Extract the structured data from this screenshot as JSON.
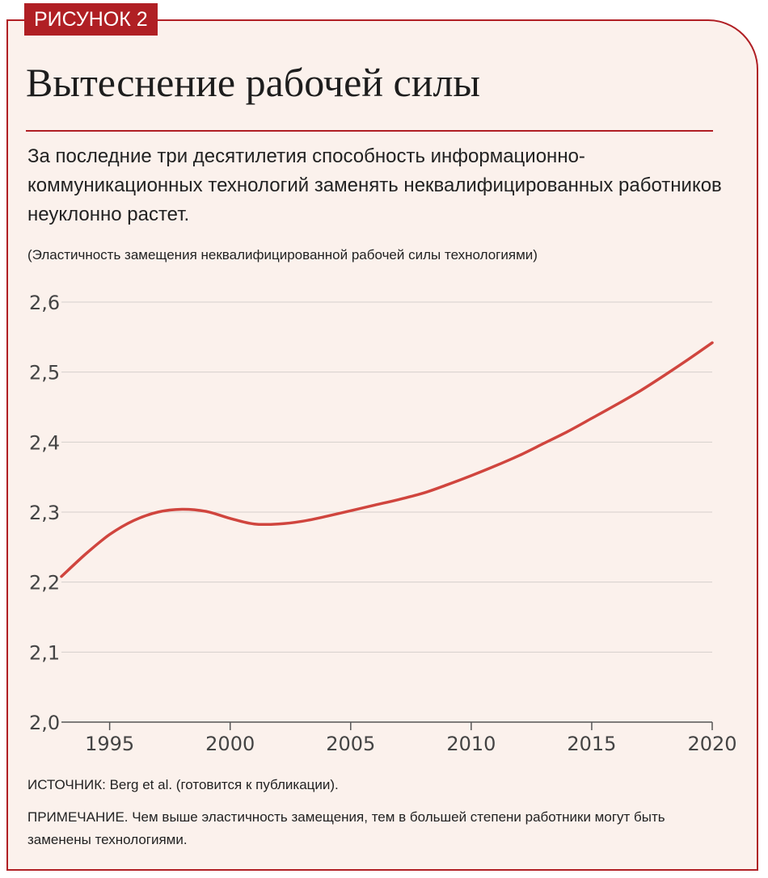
{
  "figure_label": "РИСУНОК 2",
  "title": "Вытеснение рабочей силы",
  "subtitle": "За последние три десятилетия способность информационно-коммуникационных технологий заменять неквалифицированных работников неуклонно растет.",
  "unit_label": "(Эластичность замещения неквалифицированной рабочей силы технологиями)",
  "source": "ИСТОЧНИК: Berg et al. (готовится к публикации).",
  "note": "ПРИМЕЧАНИЕ. Чем выше эластичность замещения, тем в большей степени работники могут быть заменены технологиями.",
  "colors": {
    "accent": "#b01f24",
    "line": "#d0453e",
    "panel": "#fbf1ec",
    "grid": "#d6d0cc"
  },
  "chart_data": {
    "type": "line",
    "title": "",
    "xlabel": "",
    "ylabel": "",
    "xlim": [
      1993,
      2020
    ],
    "ylim": [
      2.0,
      2.6
    ],
    "grid": true,
    "x_ticks": [
      1995,
      2000,
      2005,
      2010,
      2015,
      2020
    ],
    "x_tick_labels": [
      "1995",
      "2000",
      "2005",
      "2010",
      "2015",
      "2020"
    ],
    "y_ticks": [
      2.0,
      2.1,
      2.2,
      2.3,
      2.4,
      2.5,
      2.6
    ],
    "y_tick_labels": [
      "2,0",
      "2,1",
      "2,2",
      "2,3",
      "2,4",
      "2,5",
      "2,6"
    ],
    "series": [
      {
        "x": [
          1993,
          1994,
          1995,
          1996,
          1997,
          1998,
          1999,
          2000,
          2001,
          2002,
          2003,
          2004,
          2005,
          2006,
          2007,
          2008,
          2009,
          2010,
          2011,
          2012,
          2013,
          2014,
          2015,
          2016,
          2017,
          2018,
          2019,
          2020
        ],
        "y": [
          2.208,
          2.24,
          2.268,
          2.288,
          2.3,
          2.304,
          2.301,
          2.291,
          2.283,
          2.283,
          2.287,
          2.294,
          2.302,
          2.31,
          2.318,
          2.327,
          2.339,
          2.352,
          2.366,
          2.381,
          2.398,
          2.415,
          2.434,
          2.453,
          2.473,
          2.495,
          2.518,
          2.542
        ]
      }
    ]
  }
}
